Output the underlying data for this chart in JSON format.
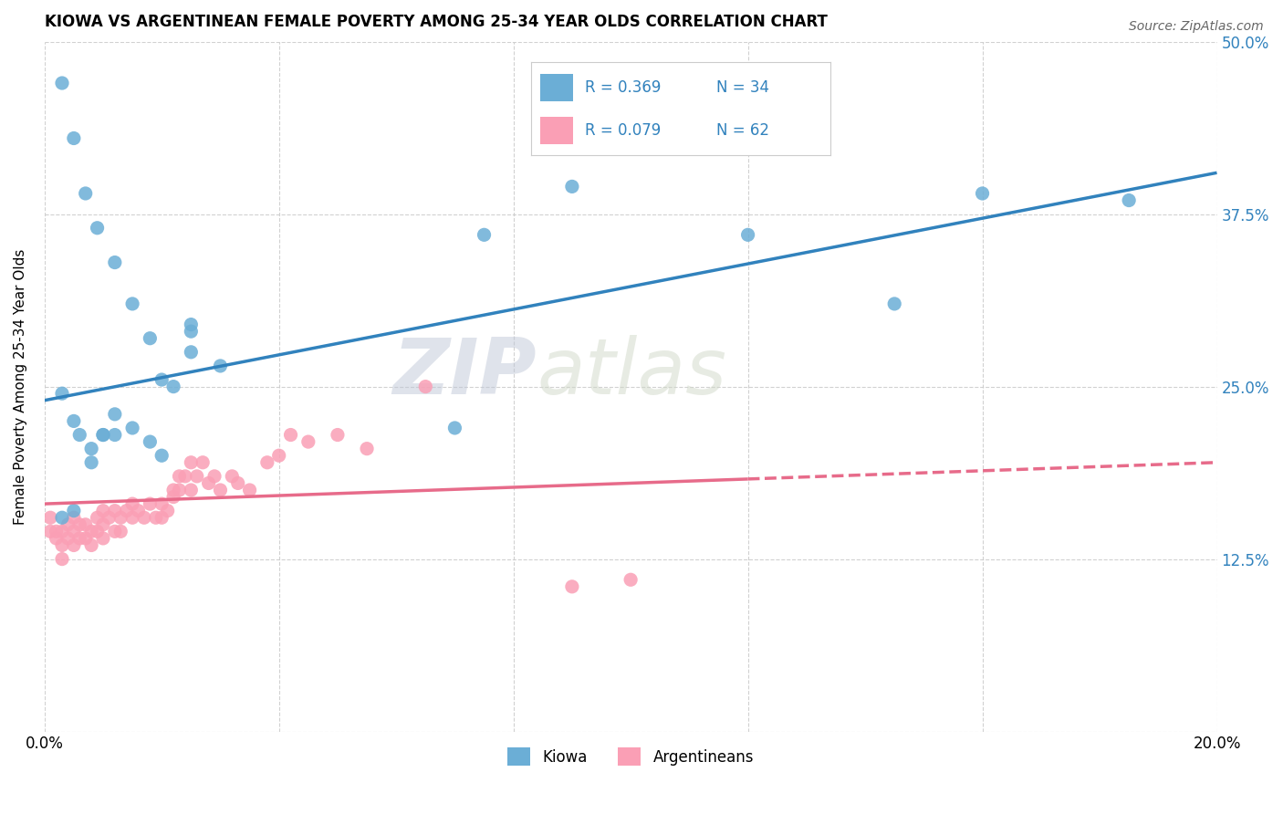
{
  "title": "KIOWA VS ARGENTINEAN FEMALE POVERTY AMONG 25-34 YEAR OLDS CORRELATION CHART",
  "source": "Source: ZipAtlas.com",
  "ylabel": "Female Poverty Among 25-34 Year Olds",
  "x_min": 0.0,
  "x_max": 0.2,
  "y_min": 0.0,
  "y_max": 0.5,
  "x_ticks": [
    0.0,
    0.04,
    0.08,
    0.12,
    0.16,
    0.2
  ],
  "x_tick_labels": [
    "0.0%",
    "",
    "",
    "",
    "",
    "20.0%"
  ],
  "y_ticks": [
    0.0,
    0.125,
    0.25,
    0.375,
    0.5
  ],
  "y_tick_labels": [
    "",
    "12.5%",
    "25.0%",
    "37.5%",
    "50.0%"
  ],
  "kiowa_color": "#6baed6",
  "argentinean_color": "#fa9fb5",
  "kiowa_line_color": "#3182bd",
  "argentinean_line_color": "#e76b8a",
  "R_kiowa": 0.369,
  "N_kiowa": 34,
  "R_argentinean": 0.079,
  "N_argentinean": 62,
  "watermark_zip": "ZIP",
  "watermark_atlas": "atlas",
  "background_color": "#ffffff",
  "grid_color": "#cccccc",
  "kiowa_x": [
    0.003,
    0.005,
    0.007,
    0.009,
    0.012,
    0.015,
    0.018,
    0.02,
    0.022,
    0.025,
    0.003,
    0.005,
    0.006,
    0.008,
    0.01,
    0.012,
    0.015,
    0.018,
    0.02,
    0.025,
    0.008,
    0.01,
    0.012,
    0.025,
    0.03,
    0.07,
    0.075,
    0.09,
    0.12,
    0.145,
    0.16,
    0.185,
    0.005,
    0.003
  ],
  "kiowa_y": [
    0.47,
    0.43,
    0.39,
    0.365,
    0.34,
    0.31,
    0.285,
    0.255,
    0.25,
    0.295,
    0.245,
    0.225,
    0.215,
    0.205,
    0.215,
    0.23,
    0.22,
    0.21,
    0.2,
    0.275,
    0.195,
    0.215,
    0.215,
    0.29,
    0.265,
    0.22,
    0.36,
    0.395,
    0.36,
    0.31,
    0.39,
    0.385,
    0.16,
    0.155
  ],
  "argentinean_x": [
    0.001,
    0.001,
    0.002,
    0.002,
    0.003,
    0.003,
    0.003,
    0.004,
    0.004,
    0.005,
    0.005,
    0.005,
    0.006,
    0.006,
    0.007,
    0.007,
    0.008,
    0.008,
    0.009,
    0.009,
    0.01,
    0.01,
    0.01,
    0.011,
    0.012,
    0.012,
    0.013,
    0.013,
    0.014,
    0.015,
    0.015,
    0.016,
    0.017,
    0.018,
    0.019,
    0.02,
    0.02,
    0.021,
    0.022,
    0.022,
    0.023,
    0.023,
    0.024,
    0.025,
    0.025,
    0.026,
    0.027,
    0.028,
    0.029,
    0.03,
    0.032,
    0.033,
    0.035,
    0.038,
    0.04,
    0.042,
    0.045,
    0.05,
    0.055,
    0.065,
    0.09,
    0.1
  ],
  "argentinean_y": [
    0.155,
    0.145,
    0.145,
    0.14,
    0.145,
    0.135,
    0.125,
    0.15,
    0.14,
    0.155,
    0.145,
    0.135,
    0.15,
    0.14,
    0.15,
    0.14,
    0.145,
    0.135,
    0.155,
    0.145,
    0.16,
    0.15,
    0.14,
    0.155,
    0.145,
    0.16,
    0.155,
    0.145,
    0.16,
    0.165,
    0.155,
    0.16,
    0.155,
    0.165,
    0.155,
    0.165,
    0.155,
    0.16,
    0.175,
    0.17,
    0.185,
    0.175,
    0.185,
    0.195,
    0.175,
    0.185,
    0.195,
    0.18,
    0.185,
    0.175,
    0.185,
    0.18,
    0.175,
    0.195,
    0.2,
    0.215,
    0.21,
    0.215,
    0.205,
    0.25,
    0.105,
    0.11
  ],
  "kiowa_line_x0": 0.0,
  "kiowa_line_y0": 0.24,
  "kiowa_line_x1": 0.2,
  "kiowa_line_y1": 0.405,
  "arg_line_x0": 0.0,
  "arg_line_y0": 0.165,
  "arg_line_x1": 0.2,
  "arg_line_y1": 0.195
}
